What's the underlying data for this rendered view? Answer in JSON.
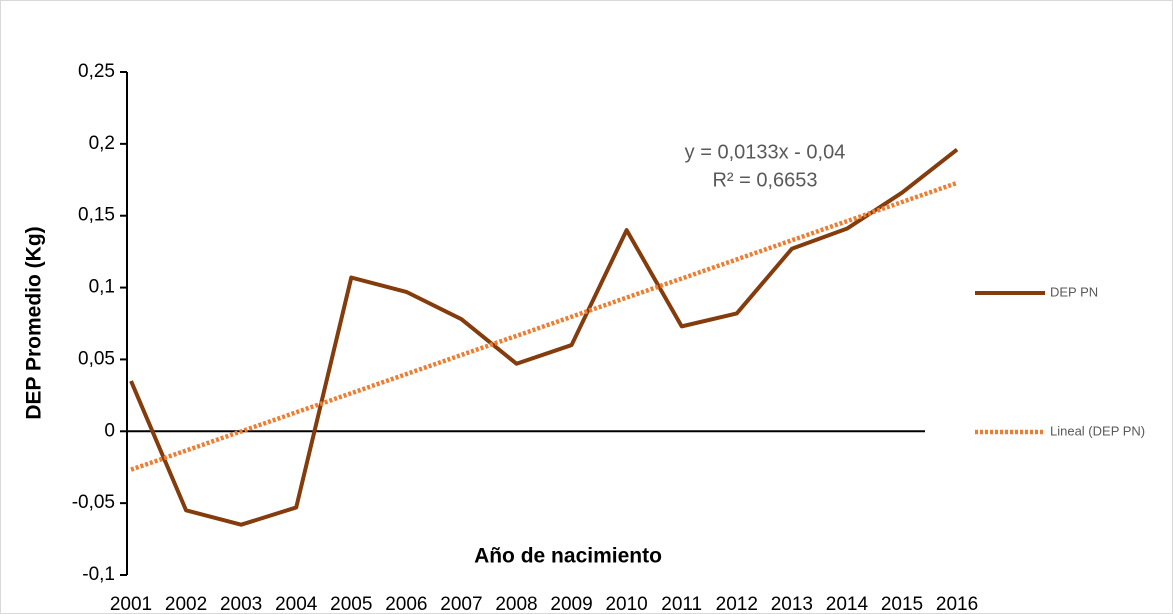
{
  "chart_data": {
    "type": "line",
    "y_label": "DEP Promedio (Kg)",
    "x_label": "Año de nacimiento",
    "categories": [
      "2001",
      "2002",
      "2003",
      "2004",
      "2005",
      "2006",
      "2007",
      "2008",
      "2009",
      "2010",
      "2011",
      "2012",
      "2013",
      "2014",
      "2015",
      "2016"
    ],
    "series": [
      {
        "name": "DEP PN",
        "color": "#843c0c",
        "values": [
          0.035,
          -0.055,
          -0.065,
          -0.053,
          0.107,
          0.097,
          0.078,
          0.047,
          0.06,
          0.14,
          0.073,
          0.082,
          0.127,
          0.141,
          0.166,
          0.196
        ]
      }
    ],
    "trendline": {
      "name": "Lineal (DEP PN)",
      "color": "#ed7d31",
      "slope": 0.0133,
      "intercept": -0.04,
      "equation": "y = 0,0133x - 0,04",
      "r_squared": "R² = 0,6653"
    },
    "ylim": [
      -0.1,
      0.25
    ],
    "yticks": [
      {
        "value": -0.1,
        "label": "-0,1"
      },
      {
        "value": -0.05,
        "label": "-0,05"
      },
      0,
      {
        "value": 0.05,
        "label": "0,05"
      },
      {
        "value": 0.1,
        "label": "0,1"
      },
      {
        "value": 0.15,
        "label": "0,15"
      },
      {
        "value": 0.2,
        "label": "0,2"
      },
      {
        "value": 0.25,
        "label": "0,25"
      }
    ],
    "legend": "right"
  }
}
